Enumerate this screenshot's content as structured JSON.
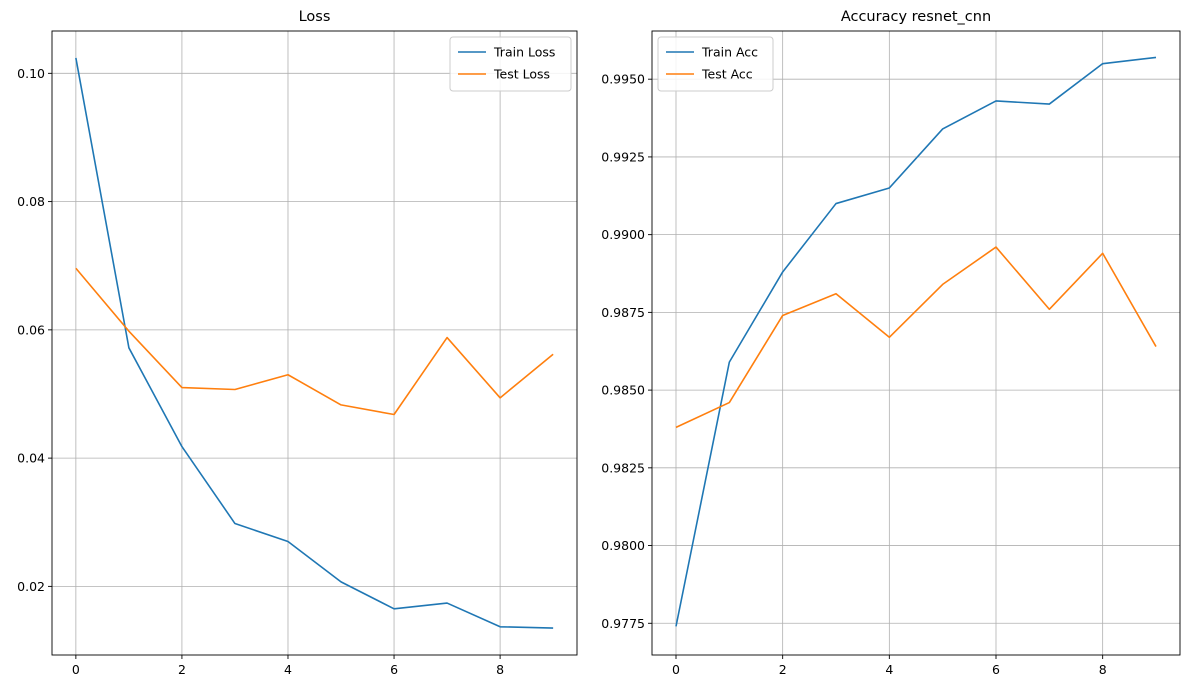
{
  "chart_data": [
    {
      "type": "line",
      "title": "Loss",
      "xlabel": "",
      "ylabel": "",
      "x": [
        0,
        1,
        2,
        3,
        4,
        5,
        6,
        7,
        8,
        9
      ],
      "xlim": [
        -0.45,
        9.45
      ],
      "ylim": [
        0.0093,
        0.1066
      ],
      "xticks": [
        0,
        2,
        4,
        6,
        8
      ],
      "yticks": [
        0.02,
        0.04,
        0.06,
        0.08,
        0.1
      ],
      "xtick_labels": [
        "0",
        "2",
        "4",
        "6",
        "8"
      ],
      "ytick_labels": [
        "0.02",
        "0.04",
        "0.06",
        "0.08",
        "0.10"
      ],
      "grid": true,
      "legend_position": "top-right",
      "series": [
        {
          "name": "Train Loss",
          "color": "#1f77b4",
          "values": [
            0.1024,
            0.0572,
            0.0418,
            0.0298,
            0.027,
            0.0207,
            0.0165,
            0.0174,
            0.0137,
            0.0135
          ]
        },
        {
          "name": "Test Loss",
          "color": "#ff7f0e",
          "values": [
            0.0696,
            0.0598,
            0.051,
            0.0507,
            0.053,
            0.0483,
            0.0468,
            0.0588,
            0.0494,
            0.0562
          ]
        }
      ]
    },
    {
      "type": "line",
      "title": "Accuracy resnet_cnn",
      "xlabel": "",
      "ylabel": "",
      "x": [
        0,
        1,
        2,
        3,
        4,
        5,
        6,
        7,
        8,
        9
      ],
      "xlim": [
        -0.45,
        9.45
      ],
      "ylim": [
        0.97648,
        0.99655
      ],
      "xticks": [
        0,
        2,
        4,
        6,
        8
      ],
      "yticks": [
        0.9775,
        0.98,
        0.9825,
        0.985,
        0.9875,
        0.99,
        0.9925,
        0.995
      ],
      "xtick_labels": [
        "0",
        "2",
        "4",
        "6",
        "8"
      ],
      "ytick_labels": [
        "0.9775",
        "0.9800",
        "0.9825",
        "0.9850",
        "0.9875",
        "0.9900",
        "0.9925",
        "0.9950"
      ],
      "grid": true,
      "legend_position": "top-left",
      "series": [
        {
          "name": "Train Acc",
          "color": "#1f77b4",
          "values": [
            0.9774,
            0.9859,
            0.9888,
            0.991,
            0.9915,
            0.9934,
            0.9943,
            0.9942,
            0.9955,
            0.9957
          ]
        },
        {
          "name": "Test Acc",
          "color": "#ff7f0e",
          "values": [
            0.9838,
            0.9846,
            0.9874,
            0.9881,
            0.9867,
            0.9884,
            0.9896,
            0.9876,
            0.9894,
            0.9864
          ]
        }
      ]
    }
  ]
}
